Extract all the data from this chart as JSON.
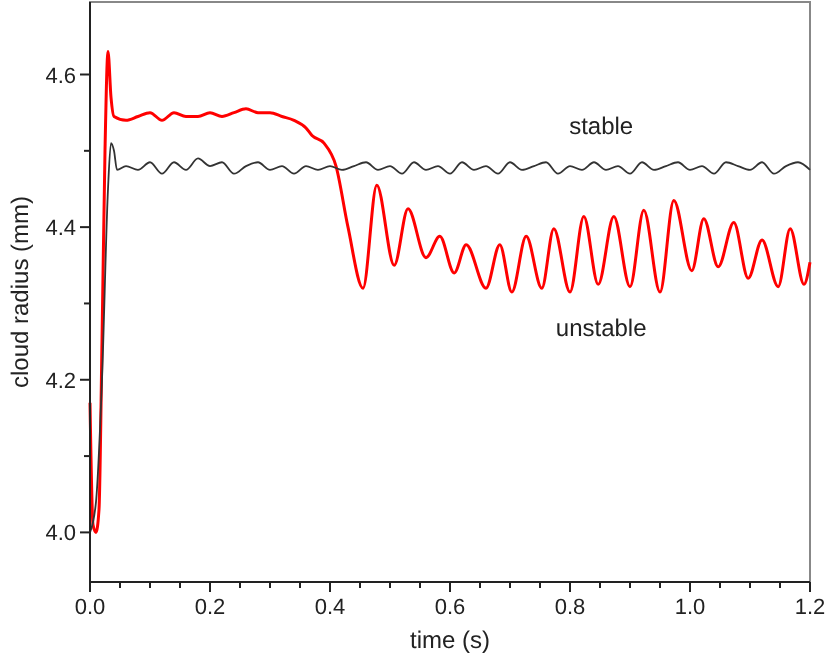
{
  "chart_data": {
    "type": "line",
    "xlabel": "time (s)",
    "ylabel": "cloud radius (mm)",
    "xlim": [
      0,
      1.2
    ],
    "ylim": [
      3.935,
      4.695
    ],
    "xticks": [
      {
        "value": 0,
        "label": "0.0"
      },
      {
        "value": 0.05,
        "label": null
      },
      {
        "value": 0.1,
        "label": null
      },
      {
        "value": 0.15,
        "label": null
      },
      {
        "value": 0.2,
        "label": "0.2"
      },
      {
        "value": 0.25,
        "label": null
      },
      {
        "value": 0.3,
        "label": null
      },
      {
        "value": 0.35,
        "label": null
      },
      {
        "value": 0.4,
        "label": "0.4"
      },
      {
        "value": 0.45,
        "label": null
      },
      {
        "value": 0.5,
        "label": null
      },
      {
        "value": 0.55,
        "label": null
      },
      {
        "value": 0.6,
        "label": "0.6"
      },
      {
        "value": 0.65,
        "label": null
      },
      {
        "value": 0.7,
        "label": null
      },
      {
        "value": 0.75,
        "label": null
      },
      {
        "value": 0.8,
        "label": "0.8"
      },
      {
        "value": 0.85,
        "label": null
      },
      {
        "value": 0.9,
        "label": null
      },
      {
        "value": 0.95,
        "label": null
      },
      {
        "value": 1.0,
        "label": "1.0"
      },
      {
        "value": 1.05,
        "label": null
      },
      {
        "value": 1.1,
        "label": null
      },
      {
        "value": 1.15,
        "label": null
      },
      {
        "value": 1.2,
        "label": "1.2"
      }
    ],
    "yticks": [
      {
        "value": 4.0,
        "label": "4.0"
      },
      {
        "value": 4.1,
        "label": null
      },
      {
        "value": 4.2,
        "label": "4.2"
      },
      {
        "value": 4.3,
        "label": null
      },
      {
        "value": 4.4,
        "label": "4.4"
      },
      {
        "value": 4.5,
        "label": null
      },
      {
        "value": 4.6,
        "label": "4.6"
      }
    ],
    "grid": false,
    "marker": "none",
    "line_style": "solid",
    "series": [
      {
        "name": "stable",
        "color": "#333333",
        "x": [
          0,
          0.01,
          0.02,
          0.03,
          0.035,
          0.04,
          0.045,
          0.06,
          0.08,
          0.1,
          0.12,
          0.14,
          0.16,
          0.18,
          0.2,
          0.22,
          0.24,
          0.26,
          0.28,
          0.3,
          0.32,
          0.34,
          0.36,
          0.38,
          0.4,
          0.42,
          0.44,
          0.46,
          0.48,
          0.5,
          0.52,
          0.54,
          0.56,
          0.58,
          0.6,
          0.62,
          0.64,
          0.66,
          0.68,
          0.7,
          0.72,
          0.74,
          0.76,
          0.78,
          0.8,
          0.82,
          0.84,
          0.86,
          0.88,
          0.9,
          0.92,
          0.94,
          0.96,
          0.98,
          1.0,
          1.02,
          1.04,
          1.06,
          1.08,
          1.1,
          1.12,
          1.14,
          1.16,
          1.18,
          1.2
        ],
        "values": [
          4.0,
          4.04,
          4.2,
          4.45,
          4.51,
          4.5,
          4.475,
          4.48,
          4.475,
          4.485,
          4.47,
          4.485,
          4.475,
          4.49,
          4.48,
          4.485,
          4.47,
          4.48,
          4.485,
          4.475,
          4.48,
          4.47,
          4.48,
          4.475,
          4.48,
          4.475,
          4.48,
          4.485,
          4.475,
          4.48,
          4.47,
          4.485,
          4.475,
          4.48,
          4.47,
          4.485,
          4.475,
          4.48,
          4.47,
          4.485,
          4.475,
          4.48,
          4.485,
          4.47,
          4.48,
          4.475,
          4.485,
          4.475,
          4.48,
          4.47,
          4.485,
          4.475,
          4.48,
          4.485,
          4.475,
          4.48,
          4.47,
          4.485,
          4.48,
          4.475,
          4.485,
          4.47,
          4.48,
          4.485,
          4.475
        ]
      },
      {
        "name": "unstable",
        "color": "#ff0000",
        "x": [
          0,
          0.005,
          0.01,
          0.015,
          0.02,
          0.025,
          0.03,
          0.035,
          0.04,
          0.06,
          0.08,
          0.1,
          0.12,
          0.14,
          0.16,
          0.18,
          0.2,
          0.22,
          0.24,
          0.26,
          0.28,
          0.3,
          0.32,
          0.34,
          0.36,
          0.37,
          0.39,
          0.41,
          0.43,
          0.455,
          0.478,
          0.507,
          0.53,
          0.56,
          0.583,
          0.607,
          0.627,
          0.66,
          0.683,
          0.703,
          0.727,
          0.753,
          0.773,
          0.8,
          0.823,
          0.847,
          0.873,
          0.9,
          0.923,
          0.95,
          0.973,
          1.003,
          1.023,
          1.047,
          1.073,
          1.097,
          1.12,
          1.147,
          1.167,
          1.19,
          1.2
        ],
        "values": [
          4.17,
          4.01,
          4.0,
          4.03,
          4.25,
          4.5,
          4.63,
          4.57,
          4.545,
          4.54,
          4.545,
          4.55,
          4.54,
          4.55,
          4.545,
          4.545,
          4.55,
          4.545,
          4.55,
          4.555,
          4.55,
          4.55,
          4.545,
          4.54,
          4.53,
          4.52,
          4.51,
          4.48,
          4.4,
          4.32,
          4.455,
          4.35,
          4.424,
          4.36,
          4.388,
          4.34,
          4.377,
          4.32,
          4.377,
          4.315,
          4.388,
          4.32,
          4.398,
          4.315,
          4.414,
          4.325,
          4.414,
          4.322,
          4.422,
          4.315,
          4.435,
          4.343,
          4.411,
          4.348,
          4.406,
          4.333,
          4.383,
          4.322,
          4.398,
          4.325,
          4.354
        ]
      }
    ]
  }
}
